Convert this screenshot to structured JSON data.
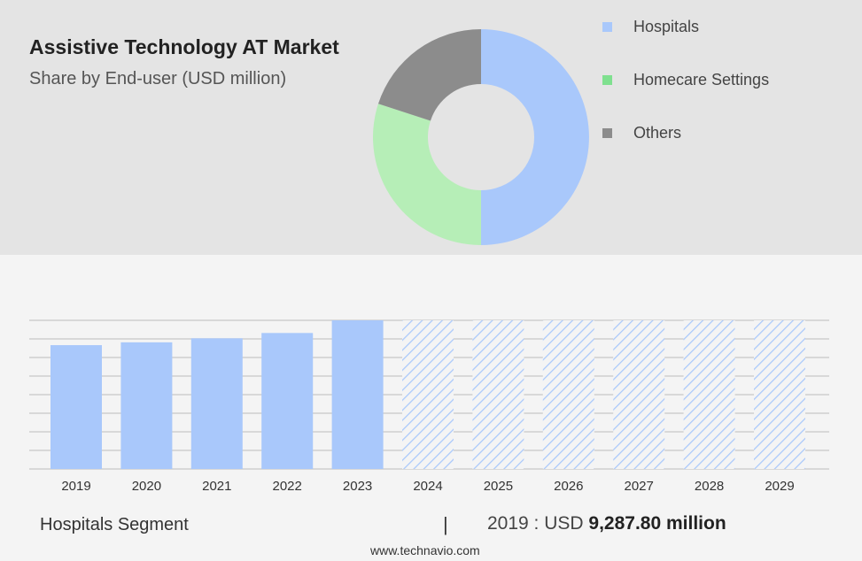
{
  "header": {
    "title": "Assistive Technology AT Market",
    "subtitle": "Share by End-user (USD million)"
  },
  "legend": [
    {
      "label": "Hospitals",
      "color": "#a9c8fb"
    },
    {
      "label": "Homecare Settings",
      "color": "#7fe08f"
    },
    {
      "label": "Others",
      "color": "#8c8c8c"
    }
  ],
  "footer": {
    "segment_label": "Hospitals Segment",
    "divider": "|",
    "year_prefix": "2019 : USD",
    "value_text": "9,287.80 million",
    "website": "www.technavio.com"
  },
  "chart_data": [
    {
      "type": "pie",
      "variant": "donut",
      "title": "Assistive Technology AT Market",
      "subtitle": "Share by End-user (USD million)",
      "labels": [
        "Hospitals",
        "Homecare Settings",
        "Others"
      ],
      "values": [
        50,
        30,
        20
      ],
      "colors": [
        "#a9c8fb",
        "#b6eeb7",
        "#8c8c8c"
      ],
      "legend_position": "right"
    },
    {
      "type": "bar",
      "categories": [
        "2019",
        "2020",
        "2021",
        "2022",
        "2023",
        "2024",
        "2025",
        "2026",
        "2027",
        "2028",
        "2029"
      ],
      "series": [
        {
          "name": "Hospitals",
          "values": [
            9287.8,
            9500,
            9800,
            10200,
            11150,
            11150,
            11150,
            11150,
            11150,
            11150,
            11150
          ]
        }
      ],
      "forecast_from": "2024",
      "ylim": [
        0,
        11150
      ],
      "grid": true,
      "bar_color": "#a9c8fb"
    }
  ]
}
